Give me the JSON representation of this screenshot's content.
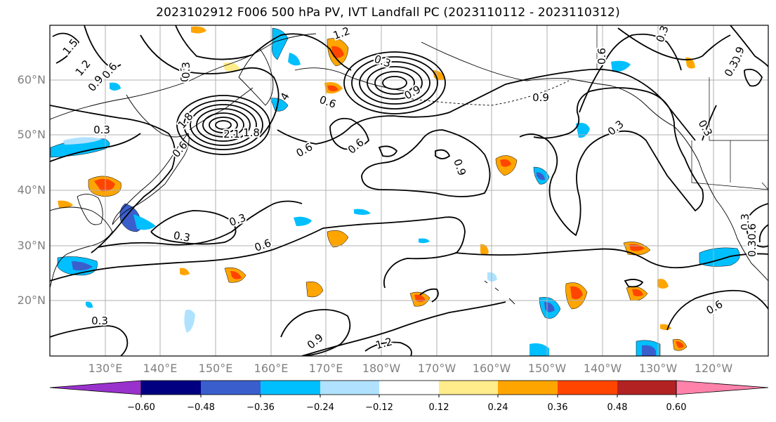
{
  "title": "2023102912 F006 500 hPa PV, IVT Landfall PC (2023110112 - 2023110312)",
  "lat_labels": [
    "60°N",
    "50°N",
    "40°N",
    "30°N",
    "20°N"
  ],
  "lon_labels": [
    "130°E",
    "140°E",
    "150°E",
    "160°E",
    "170°E",
    "180°W",
    "170°W",
    "160°W",
    "150°W",
    "140°W",
    "130°W",
    "120°W"
  ],
  "colorbar": {
    "ticks": [
      "−0.60",
      "−0.48",
      "−0.36",
      "−0.24",
      "−0.12",
      "0.12",
      "0.24",
      "0.36",
      "0.48",
      "0.60"
    ],
    "colors": [
      "#9932cc",
      "#000080",
      "#3a5fcd",
      "#00bfff",
      "#b0e2ff",
      "#ffffff",
      "#ffec8b",
      "#ffa500",
      "#ff4500",
      "#b22222",
      "#ff82ab"
    ]
  },
  "contour_labels": [
    "1.5",
    "1.2",
    "0.9",
    "0.6",
    "0.3",
    "0.3",
    "0.6",
    "1.8",
    "2.1",
    "1.8",
    "4",
    "0.6",
    "1.2",
    "0.9",
    "0.3",
    "0.9",
    "0.6",
    "0.6",
    "0.9",
    "0.3",
    "0.3",
    "0.6",
    "0.3",
    "0.3",
    "0.9",
    "0.3",
    "0.3",
    "0.3",
    "0.6",
    "0.3",
    "0.9",
    "1.2",
    "0.6",
    "0.3",
    "0.6",
    "0.3"
  ]
}
